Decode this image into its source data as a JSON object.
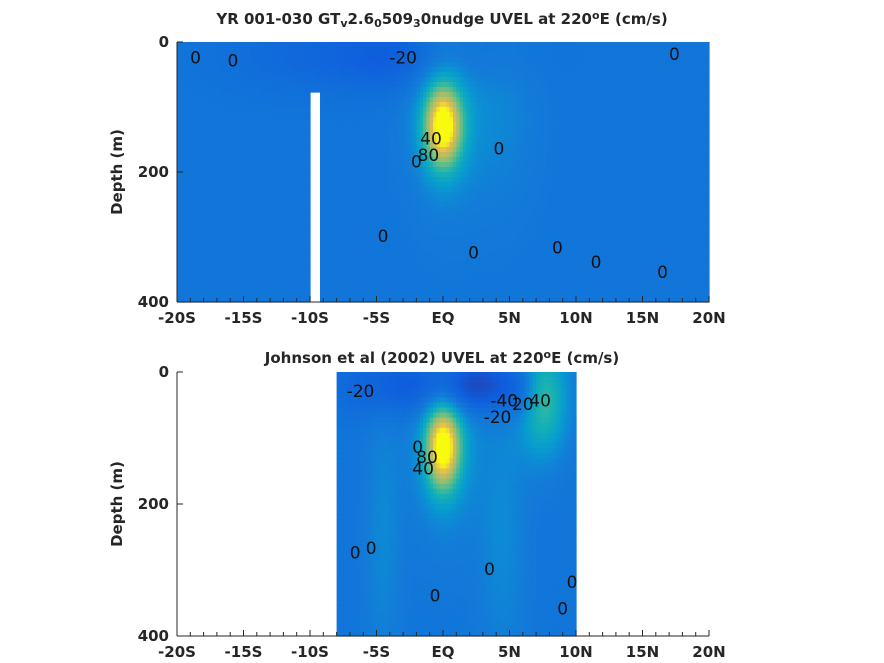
{
  "chart_data": [
    {
      "type": "heatmap",
      "title": "YR 001-030 GT",
      "title_parts": [
        {
          "text": "YR 001-030 GT"
        },
        {
          "text": "v",
          "sub": true
        },
        {
          "text": "2.6"
        },
        {
          "text": "0",
          "sub": true
        },
        {
          "text": "509"
        },
        {
          "text": "3",
          "sub": true
        },
        {
          "text": "0nudge UVEL at 220"
        },
        {
          "text": "o",
          "sup": true
        },
        {
          "text": "E (cm/s)"
        }
      ],
      "ylabel": "Depth (m)",
      "xlabel": "",
      "xlim": [
        -20,
        20
      ],
      "ylim": [
        0,
        400
      ],
      "y_reversed": true,
      "xticks": [
        -20,
        -15,
        -10,
        -5,
        0,
        5,
        10,
        15,
        20
      ],
      "xticklabels": [
        "-20S",
        "-15S",
        "-10S",
        "-5S",
        "EQ",
        "5N",
        "10N",
        "15N",
        "20N"
      ],
      "yticks": [
        0,
        200,
        400
      ],
      "yticklabels": [
        "0",
        "200",
        "400"
      ],
      "data_extent": [
        -20,
        20
      ],
      "missing_bands": [
        {
          "x": [
            -10.1,
            -9.3
          ],
          "depth": [
            75,
            400
          ]
        }
      ],
      "field": {
        "background": 0,
        "features": [
          {
            "x": 0,
            "depth": 130,
            "amp": 105,
            "sx": 1.0,
            "sy": 45
          },
          {
            "x": 0.2,
            "depth": 75,
            "amp": 25,
            "sx": 2.0,
            "sy": 120
          },
          {
            "x": -2.5,
            "depth": 20,
            "amp": -25,
            "sx": 5.0,
            "sy": 40
          },
          {
            "x": 4.5,
            "depth": 90,
            "amp": 12,
            "sx": 2.0,
            "sy": 120
          },
          {
            "x": -12,
            "depth": 20,
            "amp": -8,
            "sx": 4.0,
            "sy": 40
          }
        ]
      },
      "contour_labels": [
        {
          "x": -18.6,
          "depth": 25,
          "text": "0"
        },
        {
          "x": -15.8,
          "depth": 30,
          "text": "0"
        },
        {
          "x": -3.0,
          "depth": 25,
          "text": "-20"
        },
        {
          "x": 17.4,
          "depth": 20,
          "text": "0"
        },
        {
          "x": -0.9,
          "depth": 150,
          "text": "40"
        },
        {
          "x": -1.1,
          "depth": 175,
          "text": "80"
        },
        {
          "x": -2.0,
          "depth": 185,
          "text": "0"
        },
        {
          "x": 4.2,
          "depth": 165,
          "text": "0"
        },
        {
          "x": -4.5,
          "depth": 300,
          "text": "0"
        },
        {
          "x": 2.3,
          "depth": 325,
          "text": "0"
        },
        {
          "x": 8.6,
          "depth": 318,
          "text": "0"
        },
        {
          "x": 11.5,
          "depth": 340,
          "text": "0"
        },
        {
          "x": 16.5,
          "depth": 355,
          "text": "0"
        }
      ]
    },
    {
      "type": "heatmap",
      "title": "Johnson et al (2002) UVEL at 220",
      "title_parts": [
        {
          "text": "Johnson et al (2002) UVEL at 220"
        },
        {
          "text": "o",
          "sup": true
        },
        {
          "text": "E (cm/s)"
        }
      ],
      "ylabel": "Depth (m)",
      "xlabel": "",
      "xlim": [
        -20,
        20
      ],
      "ylim": [
        0,
        400
      ],
      "y_reversed": true,
      "xticks": [
        -20,
        -15,
        -10,
        -5,
        0,
        5,
        10,
        15,
        20
      ],
      "xticklabels": [
        "-20S",
        "-15S",
        "-10S",
        "-5S",
        "EQ",
        "5N",
        "10N",
        "15N",
        "20N"
      ],
      "yticks": [
        0,
        200,
        400
      ],
      "yticklabels": [
        "0",
        "200",
        "400"
      ],
      "data_extent": [
        -8,
        10
      ],
      "field": {
        "background": 0,
        "features": [
          {
            "x": 0,
            "depth": 115,
            "amp": 100,
            "sx": 0.9,
            "sy": 45
          },
          {
            "x": 0.2,
            "depth": 60,
            "amp": 30,
            "sx": 1.8,
            "sy": 120
          },
          {
            "x": 2.0,
            "depth": 20,
            "amp": -45,
            "sx": 2.5,
            "sy": 30
          },
          {
            "x": -3.0,
            "depth": 20,
            "amp": -25,
            "sx": 3.5,
            "sy": 35
          },
          {
            "x": 7.5,
            "depth": 40,
            "amp": 55,
            "sx": 1.3,
            "sy": 60
          },
          {
            "x": 4.5,
            "depth": 250,
            "amp": 15,
            "sx": 1.3,
            "sy": 150
          },
          {
            "x": -4.5,
            "depth": 250,
            "amp": 14,
            "sx": 1.0,
            "sy": 150
          },
          {
            "x": 6.0,
            "depth": 30,
            "amp": -20,
            "sx": 1.0,
            "sy": 30
          }
        ]
      },
      "contour_labels": [
        {
          "x": -6.2,
          "depth": 30,
          "text": "-20"
        },
        {
          "x": -1.9,
          "depth": 115,
          "text": "0"
        },
        {
          "x": -1.2,
          "depth": 130,
          "text": "80"
        },
        {
          "x": -1.5,
          "depth": 148,
          "text": "40"
        },
        {
          "x": 4.1,
          "depth": 70,
          "text": "-20"
        },
        {
          "x": 4.6,
          "depth": 45,
          "text": "-40"
        },
        {
          "x": 6.0,
          "depth": 50,
          "text": "20"
        },
        {
          "x": 7.3,
          "depth": 45,
          "text": "40"
        },
        {
          "x": -6.6,
          "depth": 275,
          "text": "0"
        },
        {
          "x": -5.4,
          "depth": 268,
          "text": "0"
        },
        {
          "x": 3.5,
          "depth": 300,
          "text": "0"
        },
        {
          "x": -0.6,
          "depth": 340,
          "text": "0"
        },
        {
          "x": 9.7,
          "depth": 320,
          "text": "0"
        },
        {
          "x": 9.0,
          "depth": 360,
          "text": "0"
        }
      ]
    }
  ]
}
